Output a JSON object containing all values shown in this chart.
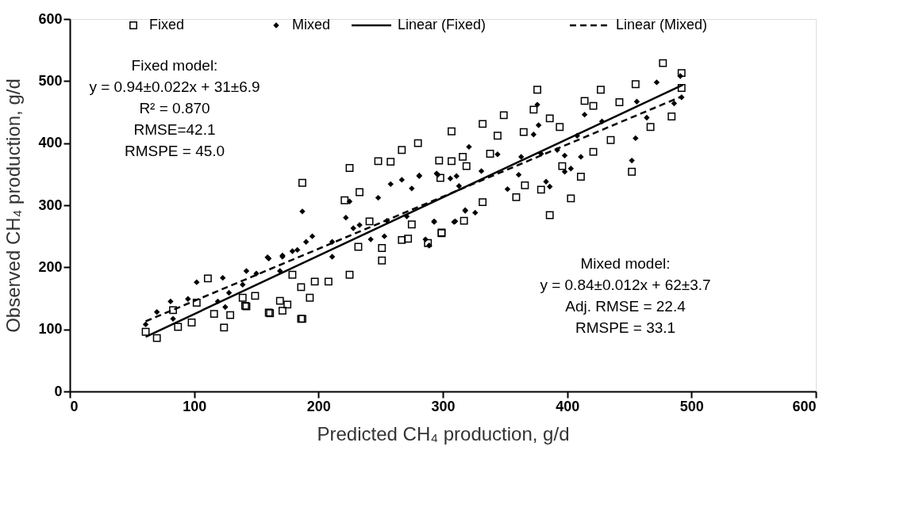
{
  "chart_data": {
    "type": "scatter",
    "xlabel": "Predicted CH₄ production, g/d",
    "ylabel": "Observed CH₄ production, g/d",
    "xlim": [
      0,
      600
    ],
    "xticks": [
      0,
      100,
      200,
      300,
      400,
      500,
      600
    ],
    "ylim": [
      0,
      600
    ],
    "yticks": [
      0,
      100,
      200,
      300,
      400,
      500,
      600
    ],
    "grid": false,
    "legend": "top",
    "annotations": [
      "Fixed model:\ny = 0.94±0.022x + 31±6.9\nR² = 0.870\nRMSE=42.1\nRMSPE = 45.0",
      "Mixed model:\ny = 0.84±0.012x + 62±3.7\nAdj. RMSE = 22.4\nRMSPE = 33.1"
    ],
    "series": [
      {
        "name": "Fixed",
        "marker": "square",
        "color": "#000000",
        "x": [
          61,
          70,
          83,
          87,
          98,
          111,
          102,
          116,
          124,
          129,
          139,
          141,
          149,
          160,
          171,
          169,
          175,
          186,
          179,
          186,
          187,
          225,
          248,
          258,
          267,
          233,
          221,
          241,
          232,
          251,
          251,
          225,
          208,
          187,
          161,
          142,
          197,
          193,
          267,
          272,
          275,
          299,
          317,
          288,
          298,
          307,
          316,
          477,
          492,
          376,
          427,
          455,
          307,
          332,
          280,
          349,
          386,
          414,
          442,
          484,
          452,
          386,
          403,
          359,
          379,
          411,
          299,
          366,
          396,
          421,
          435,
          421,
          394,
          344,
          365,
          297,
          332,
          467,
          492,
          319,
          338,
          373
        ],
        "values": [
          96,
          86,
          131,
          104,
          111,
          182,
          143,
          125,
          103,
          123,
          151,
          138,
          154,
          127,
          130,
          146,
          140,
          117,
          188,
          168,
          336,
          360,
          371,
          370,
          389,
          321,
          308,
          274,
          233,
          211,
          231,
          188,
          177,
          117,
          126,
          137,
          177,
          151,
          244,
          246,
          269,
          255,
          275,
          239,
          344,
          371,
          378,
          529,
          513,
          486,
          486,
          495,
          419,
          431,
          400,
          445,
          440,
          468,
          466,
          443,
          354,
          284,
          311,
          313,
          325,
          346,
          256,
          332,
          363,
          386,
          405,
          460,
          426,
          412,
          418,
          372,
          305,
          426,
          489,
          363,
          383,
          454
        ]
      },
      {
        "name": "Mixed",
        "marker": "diamond",
        "color": "#000000",
        "x": [
          61,
          70,
          81,
          95,
          102,
          123,
          128,
          119,
          125,
          139,
          142,
          150,
          160,
          171,
          183,
          169,
          83,
          187,
          222,
          225,
          248,
          258,
          267,
          281,
          242,
          195,
          190,
          211,
          228,
          233,
          253,
          255,
          289,
          293,
          310,
          318,
          275,
          296,
          311,
          171,
          179,
          159,
          271,
          211,
          491,
          472,
          492,
          486,
          455,
          452,
          456,
          464,
          428,
          376,
          414,
          377,
          392,
          408,
          411,
          373,
          361,
          383,
          386,
          398,
          403,
          352,
          326,
          318,
          309,
          293,
          286,
          289,
          281,
          295,
          321,
          344,
          363,
          379,
          398,
          331,
          306,
          313
        ],
        "values": [
          108,
          128,
          145,
          149,
          176,
          183,
          159,
          145,
          136,
          172,
          194,
          190,
          214,
          217,
          228,
          194,
          117,
          290,
          280,
          306,
          312,
          334,
          341,
          347,
          245,
          250,
          241,
          241,
          263,
          268,
          250,
          275,
          235,
          274,
          274,
          291,
          327,
          349,
          347,
          219,
          226,
          216,
          282,
          217,
          508,
          498,
          474,
          464,
          408,
          372,
          467,
          441,
          435,
          462,
          446,
          429,
          389,
          412,
          378,
          414,
          349,
          338,
          330,
          354,
          359,
          326,
          288,
          292,
          273,
          273,
          245,
          235,
          348,
          351,
          394,
          382,
          378,
          383,
          380,
          355,
          343,
          331
        ]
      },
      {
        "name": "Linear (Fixed)",
        "type": "line",
        "line_style": "solid",
        "marker": "none",
        "color": "#000000",
        "x": [
          61,
          493
        ],
        "values": [
          88,
          494
        ]
      },
      {
        "name": "Linear (Mixed)",
        "type": "line",
        "line_style": "dashed",
        "marker": "none",
        "color": "#000000",
        "x": [
          61,
          493
        ],
        "values": [
          113,
          476
        ]
      }
    ]
  }
}
